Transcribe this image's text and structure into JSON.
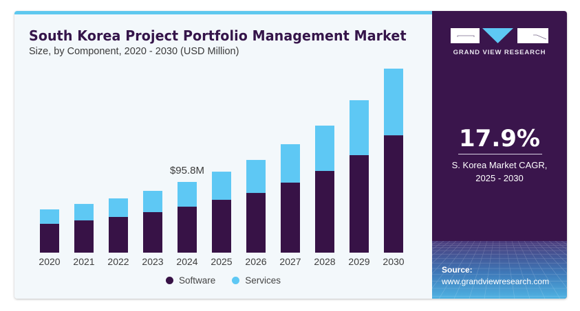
{
  "header": {
    "title": "South Korea Project Portfolio Management Market",
    "subtitle": "Size, by Component, 2020 - 2030 (USD Million)"
  },
  "colors": {
    "software": "#371246",
    "services": "#5ec8f4",
    "accent": "#5ec8ef",
    "panel": "#3a154c"
  },
  "chart_data": {
    "type": "bar",
    "stacked": true,
    "title": "South Korea Project Portfolio Management Market",
    "subtitle": "Size, by Component, 2020 - 2030 (USD Million)",
    "xlabel": "",
    "ylabel": "",
    "ylim": [
      0,
      260
    ],
    "grid": false,
    "legend_position": "bottom",
    "categories": [
      "2020",
      "2021",
      "2022",
      "2023",
      "2024",
      "2025",
      "2026",
      "2027",
      "2028",
      "2029",
      "2030"
    ],
    "series": [
      {
        "name": "Software",
        "values": [
          39.1,
          43.7,
          48.4,
          54.9,
          62.3,
          71.6,
          80.9,
          94.9,
          110.7,
          132.1,
          159.0
        ]
      },
      {
        "name": "Services",
        "values": [
          19.5,
          22.3,
          25.1,
          28.8,
          33.5,
          38.1,
          44.7,
          52.0,
          61.4,
          74.4,
          90.3
        ]
      }
    ],
    "annotations": [
      {
        "category": "2024",
        "text": "$95.8M"
      }
    ]
  },
  "legend": {
    "items": [
      {
        "label": "Software"
      },
      {
        "label": "Services"
      }
    ]
  },
  "sidebar": {
    "brand": "GRAND VIEW RESEARCH",
    "cagr_value": "17.9%",
    "cagr_label_line1": "S. Korea Market CAGR,",
    "cagr_label_line2": "2025 - 2030",
    "source_label": "Source:",
    "source_url": "www.grandviewresearch.com"
  }
}
